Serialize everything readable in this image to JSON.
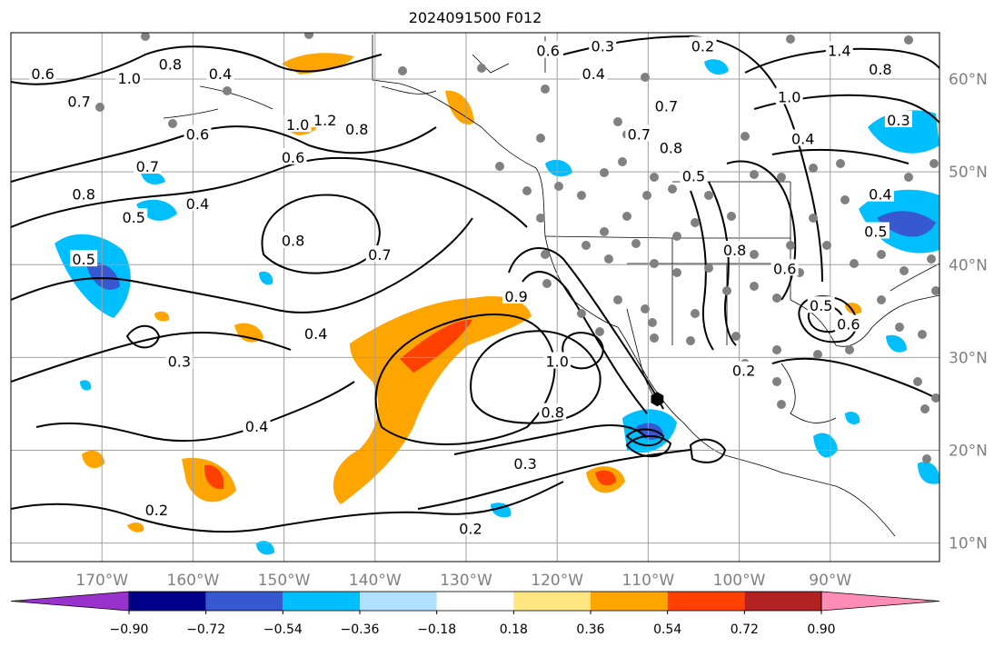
{
  "title": "2024091500 F012",
  "map": {
    "lon_range": [
      -180,
      -78
    ],
    "lat_range": [
      8,
      65
    ],
    "lon_ticks": [
      {
        "value": -170,
        "label": "170°W"
      },
      {
        "value": -160,
        "label": "160°W"
      },
      {
        "value": -150,
        "label": "150°W"
      },
      {
        "value": -140,
        "label": "140°W"
      },
      {
        "value": -130,
        "label": "130°W"
      },
      {
        "value": -120,
        "label": "120°W"
      },
      {
        "value": -110,
        "label": "110°W"
      },
      {
        "value": -100,
        "label": "100°W"
      },
      {
        "value": -90,
        "label": "90°W"
      }
    ],
    "lat_ticks": [
      {
        "value": 60,
        "label": "60°N"
      },
      {
        "value": 50,
        "label": "50°N"
      },
      {
        "value": 40,
        "label": "40°N"
      },
      {
        "value": 30,
        "label": "30°N"
      },
      {
        "value": 20,
        "label": "20°N"
      },
      {
        "value": 10,
        "label": "10°N"
      }
    ],
    "grid": true,
    "gridline_color": "#a0a0a0",
    "tick_label_color": "#808080",
    "station_marker_color": "#808080",
    "storm_marker": {
      "lon": -109,
      "lat": 25.5,
      "color": "#000000"
    },
    "contour_labels": [
      {
        "text": "0.6",
        "lon": -176.5,
        "lat": 60.5
      },
      {
        "text": "0.7",
        "lon": -172.5,
        "lat": 57.5
      },
      {
        "text": "1.0",
        "lon": -167,
        "lat": 60
      },
      {
        "text": "0.8",
        "lon": -162.5,
        "lat": 61.5
      },
      {
        "text": "0.4",
        "lon": -157,
        "lat": 60.5
      },
      {
        "text": "0.6",
        "lon": -159.5,
        "lat": 54
      },
      {
        "text": "1.2",
        "lon": -145.5,
        "lat": 55.5
      },
      {
        "text": "1.0",
        "lon": -148.5,
        "lat": 55
      },
      {
        "text": "0.8",
        "lon": -142,
        "lat": 54.5
      },
      {
        "text": "0.6",
        "lon": -149,
        "lat": 51.5
      },
      {
        "text": "0.7",
        "lon": -165,
        "lat": 50.5
      },
      {
        "text": "0.8",
        "lon": -172,
        "lat": 47.5
      },
      {
        "text": "0.5",
        "lon": -166.5,
        "lat": 45
      },
      {
        "text": "0.4",
        "lon": -159.5,
        "lat": 46.5
      },
      {
        "text": "0.5",
        "lon": -172,
        "lat": 40.5
      },
      {
        "text": "0.8",
        "lon": -149,
        "lat": 42.5
      },
      {
        "text": "0.7",
        "lon": -139.5,
        "lat": 41
      },
      {
        "text": "0.4",
        "lon": -146.5,
        "lat": 32.5
      },
      {
        "text": "0.3",
        "lon": -161.5,
        "lat": 29.5
      },
      {
        "text": "0.4",
        "lon": -153,
        "lat": 22.5
      },
      {
        "text": "0.2",
        "lon": -164,
        "lat": 13.5
      },
      {
        "text": "0.9",
        "lon": -124.5,
        "lat": 36.5
      },
      {
        "text": "1.0",
        "lon": -120,
        "lat": 29.5
      },
      {
        "text": "0.8",
        "lon": -120.5,
        "lat": 24
      },
      {
        "text": "0.3",
        "lon": -123.5,
        "lat": 18.5
      },
      {
        "text": "0.2",
        "lon": -129.5,
        "lat": 11.5
      },
      {
        "text": "0.3",
        "lon": -115,
        "lat": 63.5
      },
      {
        "text": "0.4",
        "lon": -116,
        "lat": 60.5
      },
      {
        "text": "0.7",
        "lon": -108,
        "lat": 57
      },
      {
        "text": "0.7",
        "lon": -111,
        "lat": 54
      },
      {
        "text": "0.8",
        "lon": -107.5,
        "lat": 52.5
      },
      {
        "text": "0.5",
        "lon": -105,
        "lat": 49.5
      },
      {
        "text": "0.8",
        "lon": -100.5,
        "lat": 41.5
      },
      {
        "text": "0.6",
        "lon": -95,
        "lat": 39.5
      },
      {
        "text": "1.0",
        "lon": -94.5,
        "lat": 58
      },
      {
        "text": "1.4",
        "lon": -89,
        "lat": 63
      },
      {
        "text": "0.8",
        "lon": -84.5,
        "lat": 61
      },
      {
        "text": "0.4",
        "lon": -93,
        "lat": 53.5
      },
      {
        "text": "0.3",
        "lon": -82.5,
        "lat": 55.5
      },
      {
        "text": "0.4",
        "lon": -84.5,
        "lat": 47.5
      },
      {
        "text": "0.5",
        "lon": -85,
        "lat": 43.5
      },
      {
        "text": "0.5",
        "lon": -91,
        "lat": 35.5
      },
      {
        "text": "0.6",
        "lon": -88,
        "lat": 33.5
      },
      {
        "text": "0.2",
        "lon": -99.5,
        "lat": 28.5
      },
      {
        "text": "0.6",
        "lon": -121,
        "lat": 63
      },
      {
        "text": "0.2",
        "lon": -104,
        "lat": 63.5
      }
    ]
  },
  "colorbar": {
    "colors": [
      "#9932cc",
      "#00008b",
      "#3658d1",
      "#00bfff",
      "#afe0ff",
      "#ffffff",
      "#ffe680",
      "#ffa500",
      "#ff4000",
      "#b22222",
      "#ff8cb4"
    ],
    "tick_labels": [
      "−0.90",
      "−0.72",
      "−0.54",
      "−0.36",
      "−0.18",
      "0.18",
      "0.36",
      "0.54",
      "0.72",
      "0.90"
    ]
  }
}
